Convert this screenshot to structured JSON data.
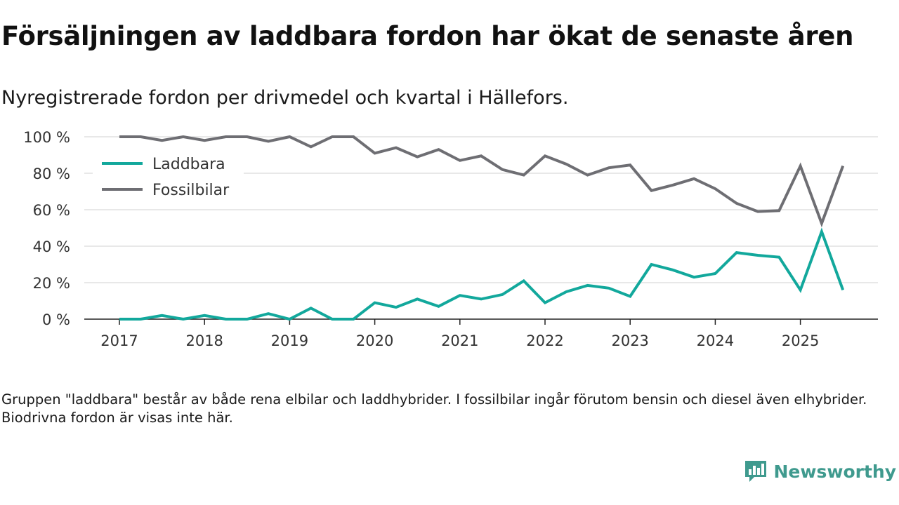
{
  "title": "Försäljningen av laddbara fordon har ökat de senaste åren",
  "subtitle": "Nyregistrerade fordon per drivmedel och kvartal i Hällefors.",
  "footnote": "Gruppen \"laddbara\" består av både rena elbilar och laddhybrider. I fossilbilar ingår förutom bensin och diesel även elhybrider. Biodrivna fordon är visas inte här.",
  "brand": {
    "name": "Newsworthy",
    "icon": "newsworthy-logo-icon",
    "color": "#3f9a8e"
  },
  "chart_data": {
    "type": "line",
    "title": "Försäljningen av laddbara fordon har ökat de senaste åren",
    "xlabel": "",
    "ylabel": "",
    "x": [
      "2017 Q1",
      "2017 Q2",
      "2017 Q3",
      "2017 Q4",
      "2018 Q1",
      "2018 Q2",
      "2018 Q3",
      "2018 Q4",
      "2019 Q1",
      "2019 Q2",
      "2019 Q3",
      "2019 Q4",
      "2020 Q1",
      "2020 Q2",
      "2020 Q3",
      "2020 Q4",
      "2021 Q1",
      "2021 Q2",
      "2021 Q3",
      "2021 Q4",
      "2022 Q1",
      "2022 Q2",
      "2022 Q3",
      "2022 Q4",
      "2023 Q1",
      "2023 Q2",
      "2023 Q3",
      "2023 Q4",
      "2024 Q1",
      "2024 Q2",
      "2024 Q3",
      "2024 Q4",
      "2025 Q1",
      "2025 Q2",
      "2025 Q3"
    ],
    "x_ticks": [
      "2017",
      "2018",
      "2019",
      "2020",
      "2021",
      "2022",
      "2023",
      "2024",
      "2025"
    ],
    "y_ticks": [
      "0 %",
      "20 %",
      "40 %",
      "60 %",
      "80 %",
      "100 %"
    ],
    "ylim": [
      0,
      100
    ],
    "grid": true,
    "legend_position": "top-left",
    "series": [
      {
        "name": "Laddbara",
        "color": "#12a89c",
        "values": [
          0,
          0,
          2,
          0,
          2,
          0,
          0,
          3,
          0,
          6,
          0,
          0,
          9,
          6.5,
          11,
          7,
          13,
          11,
          13.5,
          21,
          9,
          15,
          18.5,
          17,
          12.5,
          30,
          27,
          23,
          25,
          36.5,
          35,
          34,
          16,
          48,
          16
        ]
      },
      {
        "name": "Fossilbilar",
        "color": "#6e6e73",
        "values": [
          100,
          100,
          98,
          100,
          98,
          100,
          100,
          97.5,
          100,
          94.5,
          100,
          100,
          91,
          94,
          89,
          93,
          87,
          89.5,
          82,
          79,
          89.5,
          85,
          79,
          83,
          84.5,
          70.5,
          73.5,
          77,
          71.5,
          63.5,
          59,
          59.5,
          84,
          52.5,
          84
        ]
      }
    ]
  }
}
